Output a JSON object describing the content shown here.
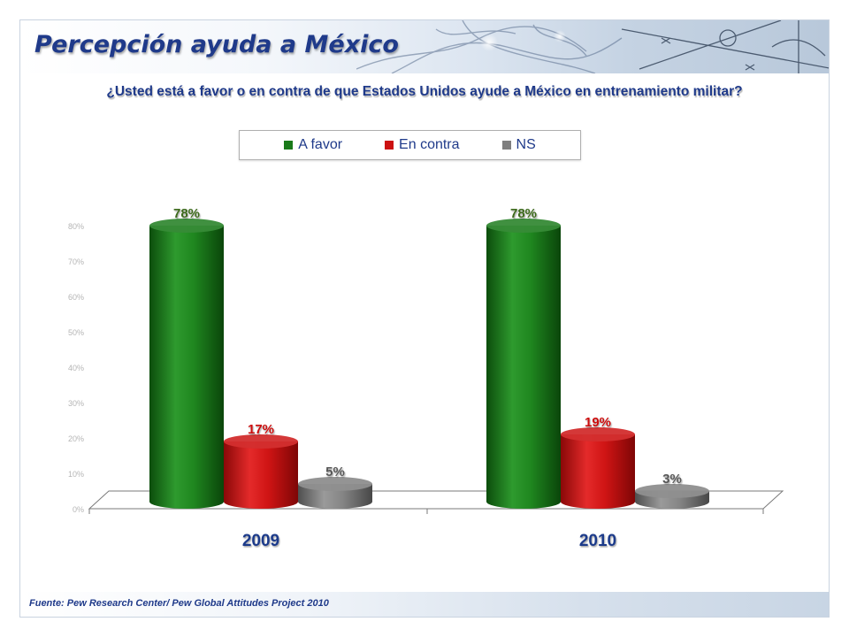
{
  "slide": {
    "title": "Percepción ayuda a México",
    "question": "¿Usted está a favor o en contra de que Estados Unidos ayude a México en entrenamiento militar?",
    "source": "Fuente: Pew Research Center/ Pew Global Attitudes Project 2010"
  },
  "colors": {
    "a_favor": "#1a7a1a",
    "en_contra": "#cc1111",
    "ns": "#7f7f7f",
    "title": "#1f3a8a"
  },
  "chart_data": {
    "type": "bar",
    "title": "",
    "xlabel": "",
    "ylabel": "",
    "categories": [
      "2009",
      "2010"
    ],
    "series": [
      {
        "name": "A favor",
        "values": [
          78,
          78
        ],
        "labels": [
          "78%",
          "78%"
        ],
        "color": "#1a7a1a"
      },
      {
        "name": "En contra",
        "values": [
          17,
          19
        ],
        "labels": [
          "17%",
          "19%"
        ],
        "color": "#cc1111"
      },
      {
        "name": "NS",
        "values": [
          5,
          3
        ],
        "labels": [
          "5%",
          "3%"
        ],
        "color": "#7f7f7f"
      }
    ],
    "ylim": [
      0,
      80
    ],
    "yticks": [
      "0%",
      "10%",
      "20%",
      "30%",
      "40%",
      "50%",
      "60%",
      "70%",
      "80%"
    ],
    "legend_position": "top",
    "grid": false,
    "style": "3d-cylinder"
  }
}
